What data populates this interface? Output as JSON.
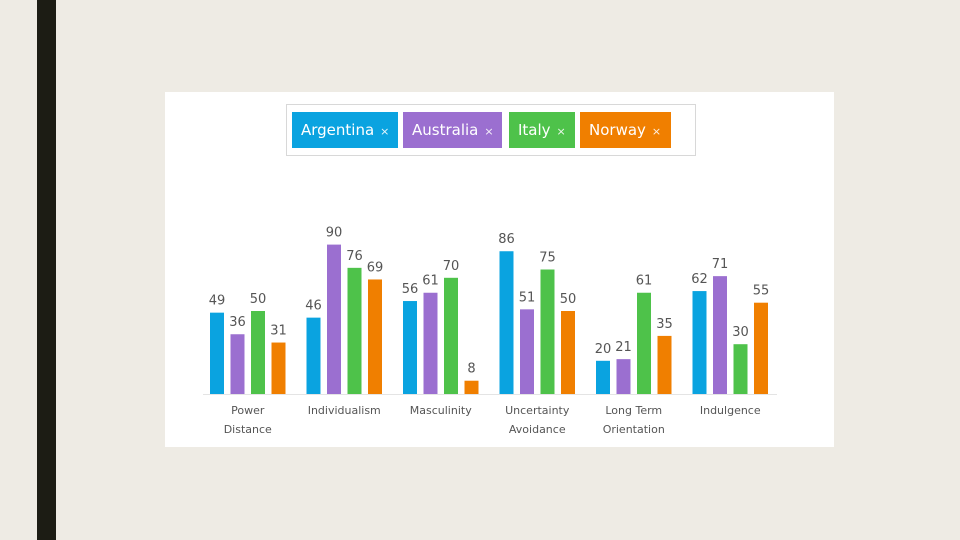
{
  "colors": {
    "Argentina": "#0aa3e0",
    "Australia": "#9b6fd0",
    "Italy": "#4ec24a",
    "Norway": "#f07f00"
  },
  "legend": {
    "remove_glyph": "×",
    "chips": [
      "Argentina",
      "Australia",
      "Italy",
      "Norway"
    ]
  },
  "chart_data": {
    "type": "bar",
    "categories": [
      [
        "Power",
        "Distance"
      ],
      [
        "Individualism"
      ],
      [
        "Masculinity"
      ],
      [
        "Uncertainty",
        "Avoidance"
      ],
      [
        "Long Term",
        "Orientation"
      ],
      [
        "Indulgence"
      ]
    ],
    "series": [
      {
        "name": "Argentina",
        "values": [
          49,
          46,
          56,
          86,
          20,
          62
        ]
      },
      {
        "name": "Australia",
        "values": [
          36,
          90,
          61,
          51,
          21,
          71
        ]
      },
      {
        "name": "Italy",
        "values": [
          50,
          76,
          70,
          75,
          61,
          30
        ]
      },
      {
        "name": "Norway",
        "values": [
          31,
          69,
          8,
          50,
          35,
          55
        ]
      }
    ],
    "ylim": [
      0,
      100
    ],
    "grid": false,
    "legend_position": "top-center"
  }
}
